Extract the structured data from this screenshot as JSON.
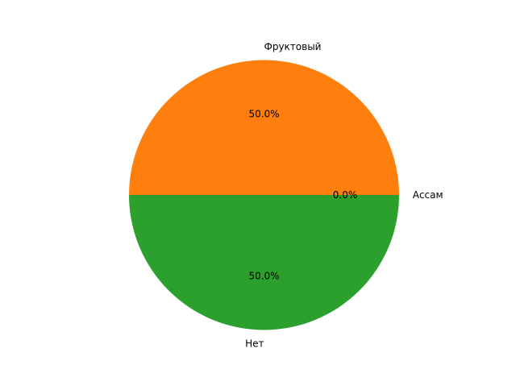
{
  "chart_data": {
    "type": "pie",
    "title": "",
    "start_angle_deg": 0,
    "counterclock": true,
    "slices": [
      {
        "label": "Ассам",
        "value": 0,
        "pct_label": "0.0%",
        "color": "#1f77b4"
      },
      {
        "label": "Фруктовый",
        "value": 50,
        "pct_label": "50.0%",
        "color": "#ff7f0e"
      },
      {
        "label": "Нет",
        "value": 50,
        "pct_label": "50.0%",
        "color": "#2ca02c"
      }
    ]
  }
}
